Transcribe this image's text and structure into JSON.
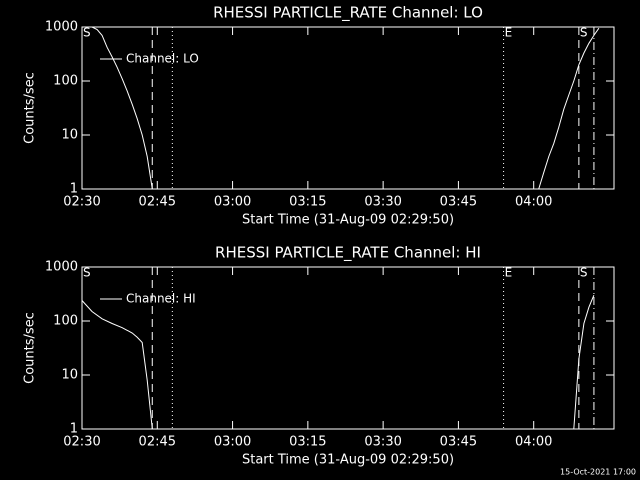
{
  "chart_data": [
    {
      "type": "line",
      "title": "RHESSI PARTICLE_RATE Channel: LO",
      "x_label": "Start Time (31-Aug-09 02:29:50)",
      "y_label": "Counts/sec",
      "x": [
        "02:32",
        "02:33",
        "02:34",
        "02:35",
        "02:36",
        "02:37",
        "02:38",
        "02:39",
        "02:40",
        "02:41",
        "02:42",
        "02:43",
        "02:44",
        "03:20",
        "04:01",
        "04:02",
        "04:03",
        "04:04",
        "04:05",
        "04:06",
        "04:07",
        "04:08",
        "04:09",
        "04:10",
        "04:11",
        "04:12",
        "04:13"
      ],
      "series": [
        {
          "name": "Channel: LO",
          "color": "#ffffff",
          "values": [
            1000,
            900,
            700,
            420,
            280,
            180,
            110,
            65,
            37,
            20,
            10,
            4,
            1,
            null,
            1,
            2,
            4,
            7,
            14,
            30,
            55,
            100,
            200,
            330,
            500,
            700,
            950
          ]
        }
      ],
      "xlim": [
        "02:30",
        "04:16"
      ],
      "xticks": [
        "02:30",
        "02:45",
        "03:00",
        "03:15",
        "03:30",
        "03:45",
        "04:00"
      ],
      "ylim": [
        1,
        1000
      ],
      "yticks": [
        1,
        10,
        100,
        1000
      ],
      "log_y": true,
      "legend": "upper left",
      "markers": [
        {
          "x": "02:44",
          "style": "dashed"
        },
        {
          "x": "02:48",
          "style": "dotted"
        },
        {
          "x": "03:54",
          "style": "dotted"
        },
        {
          "x": "04:09",
          "style": "dashed"
        },
        {
          "x": "04:12",
          "style": "dashdot"
        }
      ],
      "annotations": [
        {
          "text": "S",
          "x": "02:30"
        },
        {
          "text": "E",
          "x": "03:54"
        },
        {
          "text": "S",
          "x": "04:09"
        }
      ]
    },
    {
      "type": "line",
      "title": "RHESSI PARTICLE_RATE Channel: HI",
      "x_label": "Start Time (31-Aug-09 02:29:50)",
      "y_label": "Counts/sec",
      "x": [
        "02:30",
        "02:32",
        "02:34",
        "02:36",
        "02:38",
        "02:40",
        "02:41",
        "02:42",
        "02:43",
        "02:44",
        "03:20",
        "04:08",
        "04:09",
        "04:10",
        "04:11",
        "04:12"
      ],
      "series": [
        {
          "name": "Channel: HI",
          "color": "#ffffff",
          "values": [
            240,
            150,
            110,
            90,
            75,
            60,
            50,
            40,
            8,
            1,
            null,
            1,
            20,
            90,
            180,
            300
          ]
        }
      ],
      "xlim": [
        "02:30",
        "04:16"
      ],
      "xticks": [
        "02:30",
        "02:45",
        "03:00",
        "03:15",
        "03:30",
        "03:45",
        "04:00"
      ],
      "ylim": [
        1,
        1000
      ],
      "yticks": [
        1,
        10,
        100,
        1000
      ],
      "log_y": true,
      "legend": "upper left",
      "markers": [
        {
          "x": "02:44",
          "style": "dashed"
        },
        {
          "x": "02:48",
          "style": "dotted"
        },
        {
          "x": "03:54",
          "style": "dotted"
        },
        {
          "x": "04:09",
          "style": "dashed"
        },
        {
          "x": "04:12",
          "style": "dashdot"
        }
      ],
      "annotations": [
        {
          "text": "S",
          "x": "02:30"
        },
        {
          "text": "E",
          "x": "03:54"
        },
        {
          "text": "S",
          "x": "04:09"
        }
      ]
    }
  ],
  "footer": "15-Oct-2021 17:00"
}
